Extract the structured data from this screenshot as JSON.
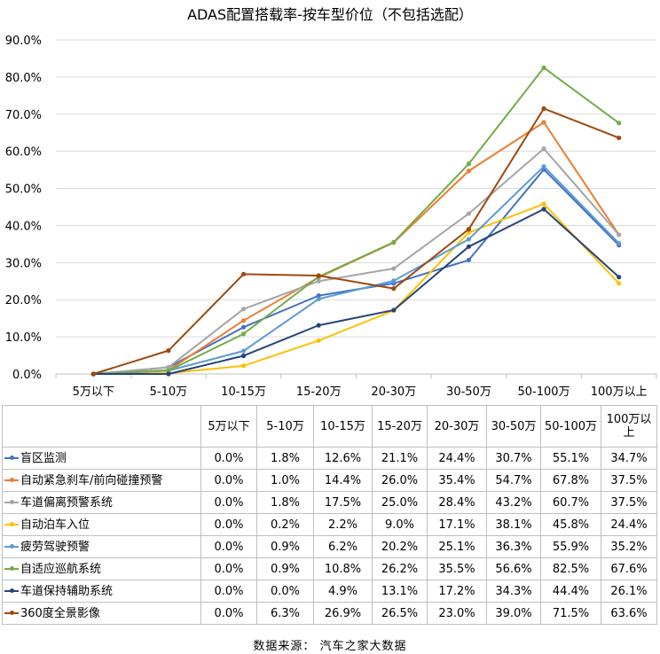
{
  "chart_data": {
    "type": "line",
    "title": "ADAS配置搭载率-按车型价位（不包括选配）",
    "xlabel": "",
    "ylabel": "",
    "ylim": [
      0,
      90
    ],
    "yticks": [
      "0.0%",
      "10.0%",
      "20.0%",
      "30.0%",
      "40.0%",
      "50.0%",
      "60.0%",
      "70.0%",
      "80.0%",
      "90.0%"
    ],
    "categories": [
      "5万以下",
      "5-10万",
      "10-15万",
      "15-20万",
      "20-30万",
      "30-50万",
      "50-100万",
      "100万以上"
    ],
    "grid": true,
    "series": [
      {
        "name": "盲区监测",
        "color": "#4472C4",
        "values": [
          0.0,
          1.8,
          12.6,
          21.1,
          24.4,
          30.7,
          55.1,
          34.7
        ],
        "labels": [
          "0.0%",
          "1.8%",
          "12.6%",
          "21.1%",
          "24.4%",
          "30.7%",
          "55.1%",
          "34.7%"
        ]
      },
      {
        "name": "自动紧急刹车/前向碰撞预警",
        "color": "#ED7D31",
        "values": [
          0.0,
          1.0,
          14.4,
          26.0,
          35.4,
          54.7,
          67.8,
          37.5
        ],
        "labels": [
          "0.0%",
          "1.0%",
          "14.4%",
          "26.0%",
          "35.4%",
          "54.7%",
          "67.8%",
          "37.5%"
        ]
      },
      {
        "name": "车道偏离预警系统",
        "color": "#A5A5A5",
        "values": [
          0.0,
          1.8,
          17.5,
          25.0,
          28.4,
          43.2,
          60.7,
          37.5
        ],
        "labels": [
          "0.0%",
          "1.8%",
          "17.5%",
          "25.0%",
          "28.4%",
          "43.2%",
          "60.7%",
          "37.5%"
        ]
      },
      {
        "name": "自动泊车入位",
        "color": "#FFC000",
        "values": [
          0.0,
          0.2,
          2.2,
          9.0,
          17.1,
          38.1,
          45.8,
          24.4
        ],
        "labels": [
          "0.0%",
          "0.2%",
          "2.2%",
          "9.0%",
          "17.1%",
          "38.1%",
          "45.8%",
          "24.4%"
        ]
      },
      {
        "name": "疲劳驾驶预警",
        "color": "#5B9BD5",
        "values": [
          0.0,
          0.9,
          6.2,
          20.2,
          25.1,
          36.3,
          55.9,
          35.2
        ],
        "labels": [
          "0.0%",
          "0.9%",
          "6.2%",
          "20.2%",
          "25.1%",
          "36.3%",
          "55.9%",
          "35.2%"
        ]
      },
      {
        "name": "自适应巡航系统",
        "color": "#70AD47",
        "values": [
          0.0,
          0.9,
          10.8,
          26.2,
          35.5,
          56.6,
          82.5,
          67.6
        ],
        "labels": [
          "0.0%",
          "0.9%",
          "10.8%",
          "26.2%",
          "35.5%",
          "56.6%",
          "82.5%",
          "67.6%"
        ]
      },
      {
        "name": "车道保持辅助系统",
        "color": "#264478",
        "values": [
          0.0,
          0.0,
          4.9,
          13.1,
          17.2,
          34.3,
          44.4,
          26.1
        ],
        "labels": [
          "0.0%",
          "0.0%",
          "4.9%",
          "13.1%",
          "17.2%",
          "34.3%",
          "44.4%",
          "26.1%"
        ]
      },
      {
        "name": "360度全景影像",
        "color": "#9E480E",
        "values": [
          0.0,
          6.3,
          26.9,
          26.5,
          23.0,
          39.0,
          71.5,
          63.6
        ],
        "labels": [
          "0.0%",
          "6.3%",
          "26.9%",
          "26.5%",
          "23.0%",
          "39.0%",
          "71.5%",
          "63.6%"
        ]
      }
    ]
  },
  "table_headers": [
    "5万以下",
    "5-10万",
    "10-15万",
    "15-20万",
    "20-30万",
    "30-50万",
    "50-100万",
    "100万以上"
  ],
  "source": "数据来源：  汽车之家大数据"
}
